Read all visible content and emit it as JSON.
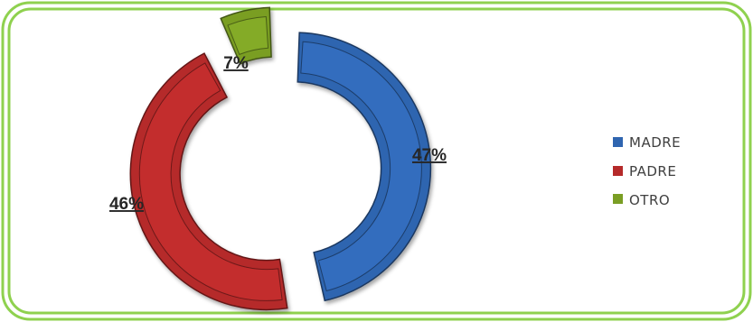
{
  "chart_data": {
    "type": "pie",
    "style": "exploded-doughnut",
    "legend_position": "right",
    "title": "",
    "slices": [
      {
        "name": "MADRE",
        "value": 47,
        "label": "47%",
        "color": "#2f65b0"
      },
      {
        "name": "PADRE",
        "value": 46,
        "label": "46%",
        "color": "#b52a2a"
      },
      {
        "name": "OTRO",
        "value": 7,
        "label": "7%",
        "color": "#7a9e24"
      }
    ]
  },
  "frame": {
    "border_color": "#8fd14f"
  }
}
